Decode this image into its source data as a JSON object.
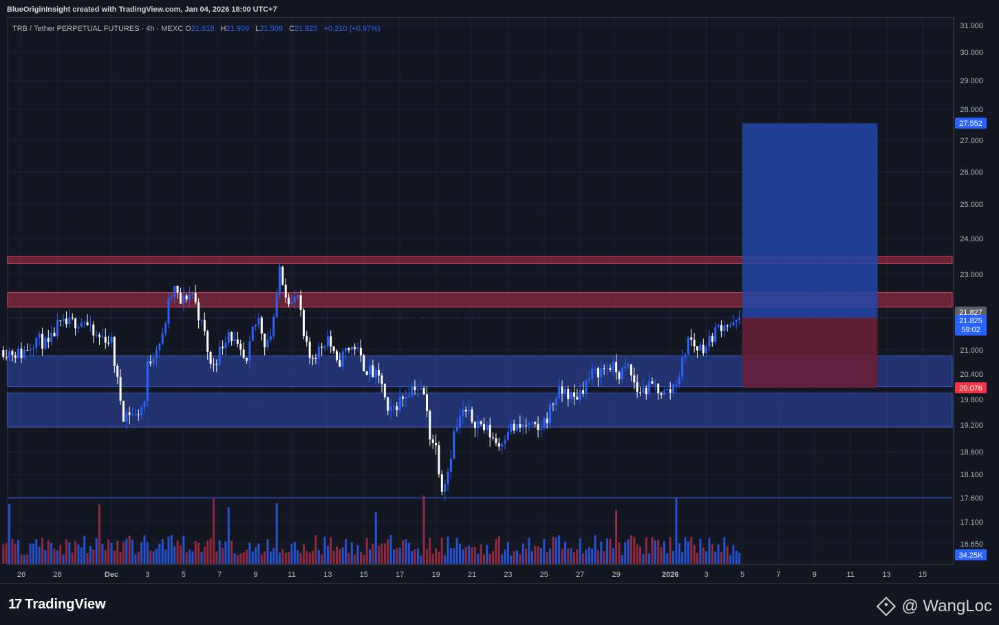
{
  "header": {
    "credit": "BlueOriginInsight created with TradingView.com, Jan 04, 2026 18:00 UTC+7"
  },
  "legend": {
    "symbol": "TRB / Tether PERPETUAL FUTURES · 4h · MEXC",
    "o_label": "O",
    "o_value": "21.618",
    "h_label": "H",
    "h_value": "21.909",
    "l_label": "L",
    "l_value": "21.509",
    "c_label": "C",
    "c_value": "21.825",
    "change": "+0.210 (+0.97%)"
  },
  "footer": {
    "brand": "TradingView",
    "watermark": "@ WangLoc"
  },
  "colors": {
    "background": "#131722",
    "up": "#2962ff",
    "down": "#ffffff",
    "vol_up": "#2962ff",
    "vol_down": "#b2304a",
    "resistance_zone": "#b2304a",
    "support_zone": "#2a3f8f",
    "target_box": "#2447a6",
    "stop_box": "#6b1f36"
  },
  "chart_data": {
    "type": "candlestick",
    "symbol": "TRB / Tether PERPETUAL FUTURES",
    "timeframe": "4h",
    "exchange": "MEXC",
    "y_ticks": [
      31.0,
      30.0,
      29.0,
      28.0,
      27.0,
      26.0,
      25.0,
      24.0,
      23.0,
      22.0,
      21.0,
      20.4,
      19.8,
      19.2,
      18.6,
      18.1,
      17.6,
      17.1,
      16.65
    ],
    "y_tick_labels": [
      "31.000",
      "30.000",
      "29.000",
      "28.000",
      "27.000",
      "26.000",
      "25.000",
      "24.000",
      "23.000",
      "22.000",
      "21.000",
      "20.400",
      "19.800",
      "19.200",
      "18.600",
      "18.100",
      "17.600",
      "17.100",
      "16.650"
    ],
    "x_tick_labels": [
      "26",
      "28",
      "Dec",
      "3",
      "5",
      "7",
      "9",
      "11",
      "13",
      "15",
      "17",
      "19",
      "21",
      "23",
      "25",
      "27",
      "29",
      "2026",
      "3",
      "5",
      "7",
      "9",
      "11",
      "13",
      "15"
    ],
    "x_ticks": [
      "2025-11-26",
      "2025-11-28",
      "2025-12-01",
      "2025-12-03",
      "2025-12-05",
      "2025-12-07",
      "2025-12-09",
      "2025-12-11",
      "2025-12-13",
      "2025-12-15",
      "2025-12-17",
      "2025-12-19",
      "2025-12-21",
      "2025-12-23",
      "2025-12-25",
      "2025-12-27",
      "2025-12-29",
      "2026-01-01",
      "2026-01-03",
      "2026-01-05",
      "2026-01-07",
      "2026-01-09",
      "2026-01-11",
      "2026-01-13",
      "2026-01-15"
    ],
    "x_range": [
      "2025-11-25T00:00",
      "2026-01-16T00:00"
    ],
    "price_path": [
      [
        "2025-11-25T00:00",
        21.0
      ],
      [
        "2025-11-26T00:00",
        20.9
      ],
      [
        "2025-11-26T20:00",
        21.3
      ],
      [
        "2025-11-27T12:00",
        21.1
      ],
      [
        "2025-11-28T00:00",
        21.6
      ],
      [
        "2025-11-28T20:00",
        21.7
      ],
      [
        "2025-11-29T12:00",
        21.75
      ],
      [
        "2025-11-30T00:00",
        21.35
      ],
      [
        "2025-11-30T16:00",
        21.3
      ],
      [
        "2025-12-01T00:00",
        21.2
      ],
      [
        "2025-12-01T08:00",
        20.2
      ],
      [
        "2025-12-01T16:00",
        19.45
      ],
      [
        "2025-12-02T00:00",
        19.5
      ],
      [
        "2025-12-02T08:00",
        19.4
      ],
      [
        "2025-12-02T20:00",
        19.75
      ],
      [
        "2025-12-03T00:00",
        20.6
      ],
      [
        "2025-12-03T12:00",
        21.1
      ],
      [
        "2025-12-03T20:00",
        21.3
      ],
      [
        "2025-12-04T04:00",
        22.2
      ],
      [
        "2025-12-04T12:00",
        22.6
      ],
      [
        "2025-12-04T20:00",
        22.2
      ],
      [
        "2025-12-05T04:00",
        22.4
      ],
      [
        "2025-12-05T12:00",
        22.5
      ],
      [
        "2025-12-05T20:00",
        21.9
      ],
      [
        "2025-12-06T04:00",
        21.4
      ],
      [
        "2025-12-06T12:00",
        20.6
      ],
      [
        "2025-12-06T20:00",
        20.8
      ],
      [
        "2025-12-07T12:00",
        21.5
      ],
      [
        "2025-12-08T00:00",
        21.0
      ],
      [
        "2025-12-08T12:00",
        20.6
      ],
      [
        "2025-12-08T20:00",
        21.5
      ],
      [
        "2025-12-09T04:00",
        21.8
      ],
      [
        "2025-12-09T12:00",
        21.2
      ],
      [
        "2025-12-09T20:00",
        21.4
      ],
      [
        "2025-12-10T04:00",
        22.3
      ],
      [
        "2025-12-10T08:00",
        23.2
      ],
      [
        "2025-12-10T16:00",
        22.5
      ],
      [
        "2025-12-11T00:00",
        22.2
      ],
      [
        "2025-12-11T08:00",
        22.4
      ],
      [
        "2025-12-11T16:00",
        21.3
      ],
      [
        "2025-12-12T00:00",
        20.8
      ],
      [
        "2025-12-12T12:00",
        21.0
      ],
      [
        "2025-12-13T00:00",
        21.35
      ],
      [
        "2025-12-13T12:00",
        20.6
      ],
      [
        "2025-12-14T00:00",
        21.0
      ],
      [
        "2025-12-14T12:00",
        21.1
      ],
      [
        "2025-12-15T00:00",
        20.6
      ],
      [
        "2025-12-15T12:00",
        20.4
      ],
      [
        "2025-12-16T00:00",
        20.2
      ],
      [
        "2025-12-16T08:00",
        19.4
      ],
      [
        "2025-12-16T20:00",
        19.7
      ],
      [
        "2025-12-17T08:00",
        19.95
      ],
      [
        "2025-12-17T20:00",
        20.15
      ],
      [
        "2025-12-18T08:00",
        19.9
      ],
      [
        "2025-12-18T16:00",
        19.0
      ],
      [
        "2025-12-19T00:00",
        18.7
      ],
      [
        "2025-12-19T08:00",
        17.85
      ],
      [
        "2025-12-19T16:00",
        18.2
      ],
      [
        "2025-12-20T00:00",
        19.0
      ],
      [
        "2025-12-20T12:00",
        19.5
      ],
      [
        "2025-12-21T00:00",
        19.35
      ],
      [
        "2025-12-21T12:00",
        19.2
      ],
      [
        "2025-12-22T00:00",
        19.0
      ],
      [
        "2025-12-22T12:00",
        18.75
      ],
      [
        "2025-12-23T00:00",
        19.15
      ],
      [
        "2025-12-23T12:00",
        19.1
      ],
      [
        "2025-12-24T00:00",
        19.2
      ],
      [
        "2025-12-24T16:00",
        19.05
      ],
      [
        "2025-12-25T04:00",
        19.4
      ],
      [
        "2025-12-25T16:00",
        19.9
      ],
      [
        "2025-12-26T04:00",
        20.0
      ],
      [
        "2025-12-26T16:00",
        19.8
      ],
      [
        "2025-12-27T04:00",
        20.1
      ],
      [
        "2025-12-27T16:00",
        20.4
      ],
      [
        "2025-12-28T04:00",
        20.5
      ],
      [
        "2025-12-28T16:00",
        20.6
      ],
      [
        "2025-12-29T04:00",
        20.4
      ],
      [
        "2025-12-29T16:00",
        20.55
      ],
      [
        "2025-12-30T04:00",
        20.0
      ],
      [
        "2025-12-30T16:00",
        20.05
      ],
      [
        "2025-12-31T04:00",
        20.1
      ],
      [
        "2025-12-31T16:00",
        19.95
      ],
      [
        "2026-01-01T00:00",
        20.0
      ],
      [
        "2026-01-01T12:00",
        20.4
      ],
      [
        "2026-01-02T00:00",
        21.3
      ],
      [
        "2026-01-02T12:00",
        21.05
      ],
      [
        "2026-01-03T00:00",
        21.1
      ],
      [
        "2026-01-03T12:00",
        21.5
      ],
      [
        "2026-01-04T00:00",
        21.7
      ],
      [
        "2026-01-04T12:00",
        21.6
      ],
      [
        "2026-01-04T20:00",
        21.825
      ]
    ],
    "zones": [
      {
        "kind": "resistance",
        "low": 23.3,
        "high": 23.5
      },
      {
        "kind": "resistance",
        "low": 22.1,
        "high": 22.5
      },
      {
        "kind": "support",
        "low": 20.1,
        "high": 20.85
      },
      {
        "kind": "support",
        "low": 19.15,
        "high": 19.95
      }
    ],
    "horizontal_line": 17.6,
    "position": {
      "type": "long",
      "entry": 21.827,
      "target": 27.552,
      "stop": 20.076,
      "start": "2026-01-05T00:00",
      "end": "2026-01-12T12:00"
    },
    "price_labels": [
      {
        "value": "27.552",
        "kind": "target"
      },
      {
        "value": "21.827",
        "kind": "entry"
      },
      {
        "value": "21.825",
        "kind": "last"
      },
      {
        "value": "59:02",
        "kind": "countdown"
      },
      {
        "value": "20.076",
        "kind": "stop"
      }
    ],
    "volume_label": "34.25K"
  }
}
